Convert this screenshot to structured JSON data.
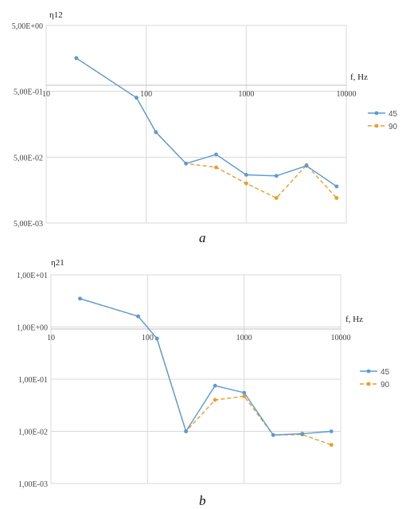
{
  "colors": {
    "s45": "#5B9BD5",
    "s90": "#ED9C28",
    "grid": "#d9d9d9",
    "axis": "#bfbfbf"
  },
  "chart_data": [
    {
      "type": "line",
      "caption": "a",
      "ylabel": "η12",
      "xlabel": "f, Hz",
      "x_scale": "log",
      "y_scale": "log",
      "xlim": [
        10,
        10000
      ],
      "ylim": [
        0.005,
        5
      ],
      "x_ticks": [
        10,
        100,
        1000,
        10000
      ],
      "x_tick_labels": [
        "10",
        "100",
        "1000",
        "10000"
      ],
      "y_ticks": [
        5,
        0.5,
        0.05,
        0.005
      ],
      "y_tick_labels": [
        "5,00E+00",
        "5,00E-01",
        "5,00E-02",
        "5,00E-03"
      ],
      "grid": true,
      "legend_position": "right",
      "series": [
        {
          "name": "45",
          "style": "solid",
          "color": "#5B9BD5",
          "x": [
            20,
            80,
            125,
            250,
            500,
            1000,
            2000,
            4000,
            8000
          ],
          "y": [
            1.6,
            0.4,
            0.12,
            0.04,
            0.055,
            0.027,
            0.026,
            0.037,
            0.018
          ]
        },
        {
          "name": "90",
          "style": "dashed",
          "color": "#ED9C28",
          "x": [
            20,
            80,
            125,
            250,
            500,
            1000,
            2000,
            4000,
            8000
          ],
          "y": [
            1.6,
            0.4,
            0.12,
            0.04,
            0.035,
            0.02,
            0.012,
            0.038,
            0.012
          ]
        }
      ]
    },
    {
      "type": "line",
      "caption": "b",
      "ylabel": "η21",
      "xlabel": "f, Hz",
      "x_scale": "log",
      "y_scale": "log",
      "xlim": [
        10,
        10000
      ],
      "ylim": [
        0.001,
        10
      ],
      "x_ticks": [
        10,
        100,
        1000,
        10000
      ],
      "x_tick_labels": [
        "10",
        "100",
        "1000",
        "10000"
      ],
      "y_ticks": [
        10,
        1,
        0.1,
        0.01,
        0.001
      ],
      "y_tick_labels": [
        "1,00E+01",
        "1,00E+00",
        "1,00E-01",
        "1,00E-02",
        "1,00E-03"
      ],
      "grid": true,
      "legend_position": "right",
      "series": [
        {
          "name": "45",
          "style": "solid",
          "color": "#5B9BD5",
          "x": [
            20,
            80,
            125,
            250,
            500,
            1000,
            2000,
            4000,
            8000
          ],
          "y": [
            3.5,
            1.6,
            0.6,
            0.01,
            0.075,
            0.055,
            0.0085,
            0.009,
            0.01
          ]
        },
        {
          "name": "90",
          "style": "dashed",
          "color": "#ED9C28",
          "x": [
            20,
            80,
            125,
            250,
            500,
            1000,
            2000,
            4000,
            8000
          ],
          "y": [
            3.5,
            1.6,
            0.6,
            0.01,
            0.04,
            0.047,
            0.0085,
            0.0087,
            0.0055
          ]
        }
      ]
    }
  ]
}
